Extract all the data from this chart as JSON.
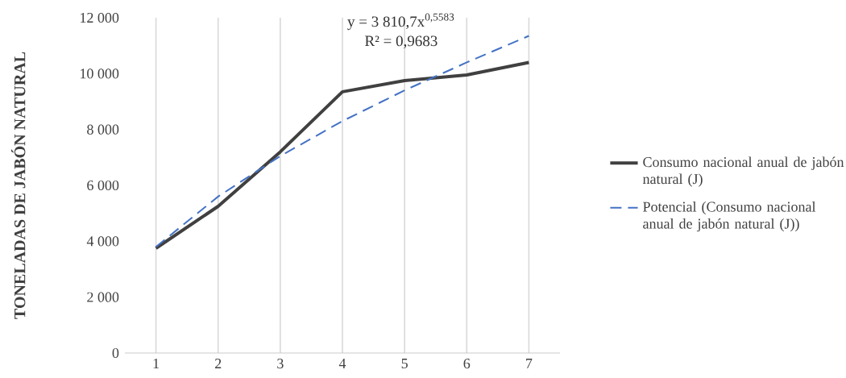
{
  "chart_data": {
    "type": "line",
    "ylabel": "TONELADAS DE JABÓN NATURAL",
    "categories": [
      "1",
      "2",
      "3",
      "4",
      "5",
      "6",
      "7"
    ],
    "series": [
      {
        "name": "Consumo nacional anual de jabón natural (J)",
        "color": "#404040",
        "values": [
          3750,
          5250,
          7200,
          9350,
          9750,
          9950,
          10400
        ],
        "line_style": "solid"
      },
      {
        "name": "Potencial (Consumo nacional anual de jabón natural (J))",
        "color": "#4472c4",
        "values": [
          3800,
          5600,
          7050,
          8300,
          9400,
          10400,
          11350
        ],
        "line_style": "dashed"
      }
    ],
    "ylim": [
      0,
      12000
    ],
    "yticks": [
      0,
      {
        "value": 2000,
        "label": "2 000"
      },
      {
        "value": 4000,
        "label": "4 000"
      },
      {
        "value": 6000,
        "label": "6 000"
      },
      {
        "value": 8000,
        "label": "8 000"
      },
      {
        "value": 10000,
        "label": "10 000"
      },
      {
        "value": 12000,
        "label": "12 000"
      }
    ],
    "annotations": [
      "y = 3 810,7x$^{0,5583}$",
      "R² = 0,9683"
    ],
    "legend": "right",
    "marker": "none",
    "grid": "x"
  }
}
